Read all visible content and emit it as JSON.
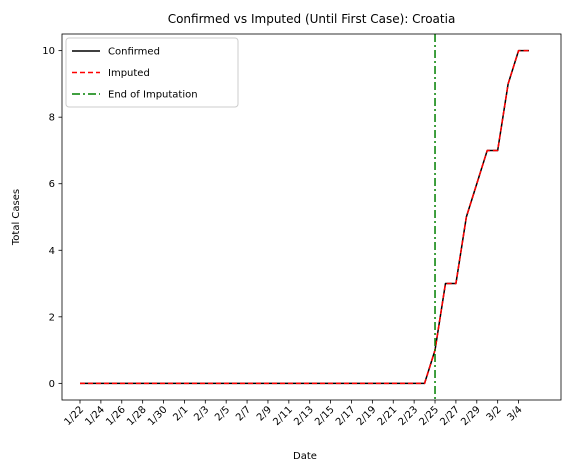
{
  "chart_data": {
    "type": "line",
    "title": "Confirmed vs Imputed (Until First Case): Croatia",
    "xlabel": "Date",
    "ylabel": "Total Cases",
    "x": [
      "1/22",
      "1/23",
      "1/24",
      "1/25",
      "1/26",
      "1/27",
      "1/28",
      "1/29",
      "1/30",
      "1/31",
      "2/1",
      "2/2",
      "2/3",
      "2/4",
      "2/5",
      "2/6",
      "2/7",
      "2/8",
      "2/9",
      "2/10",
      "2/11",
      "2/12",
      "2/13",
      "2/14",
      "2/15",
      "2/16",
      "2/17",
      "2/18",
      "2/19",
      "2/20",
      "2/21",
      "2/22",
      "2/23",
      "2/24",
      "2/25",
      "2/26",
      "2/27",
      "2/28",
      "2/29",
      "3/1",
      "3/2",
      "3/3",
      "3/4",
      "3/5"
    ],
    "xticks": [
      "1/22",
      "1/24",
      "1/26",
      "1/28",
      "1/30",
      "2/1",
      "2/3",
      "2/5",
      "2/7",
      "2/9",
      "2/11",
      "2/13",
      "2/15",
      "2/17",
      "2/19",
      "2/21",
      "2/23",
      "2/25",
      "2/27",
      "2/29",
      "3/2",
      "3/4"
    ],
    "series": [
      {
        "name": "Confirmed",
        "color": "#000000",
        "style": "solid",
        "values": [
          0,
          0,
          0,
          0,
          0,
          0,
          0,
          0,
          0,
          0,
          0,
          0,
          0,
          0,
          0,
          0,
          0,
          0,
          0,
          0,
          0,
          0,
          0,
          0,
          0,
          0,
          0,
          0,
          0,
          0,
          0,
          0,
          0,
          0,
          1,
          3,
          3,
          5,
          6,
          7,
          7,
          9,
          10,
          10
        ]
      },
      {
        "name": "Imputed",
        "color": "#ff0000",
        "style": "dashed",
        "values": [
          0,
          0,
          0,
          0,
          0,
          0,
          0,
          0,
          0,
          0,
          0,
          0,
          0,
          0,
          0,
          0,
          0,
          0,
          0,
          0,
          0,
          0,
          0,
          0,
          0,
          0,
          0,
          0,
          0,
          0,
          0,
          0,
          0,
          0,
          1,
          3,
          3,
          5,
          6,
          7,
          7,
          9,
          10,
          10
        ]
      }
    ],
    "vline": {
      "name": "End of Imputation",
      "x": "2/25",
      "color": "#008000",
      "style": "dashdot"
    },
    "ylim": [
      -0.5,
      10.5
    ],
    "yticks": [
      0,
      2,
      4,
      6,
      8,
      10
    ],
    "legend": "top-left",
    "grid": false
  }
}
